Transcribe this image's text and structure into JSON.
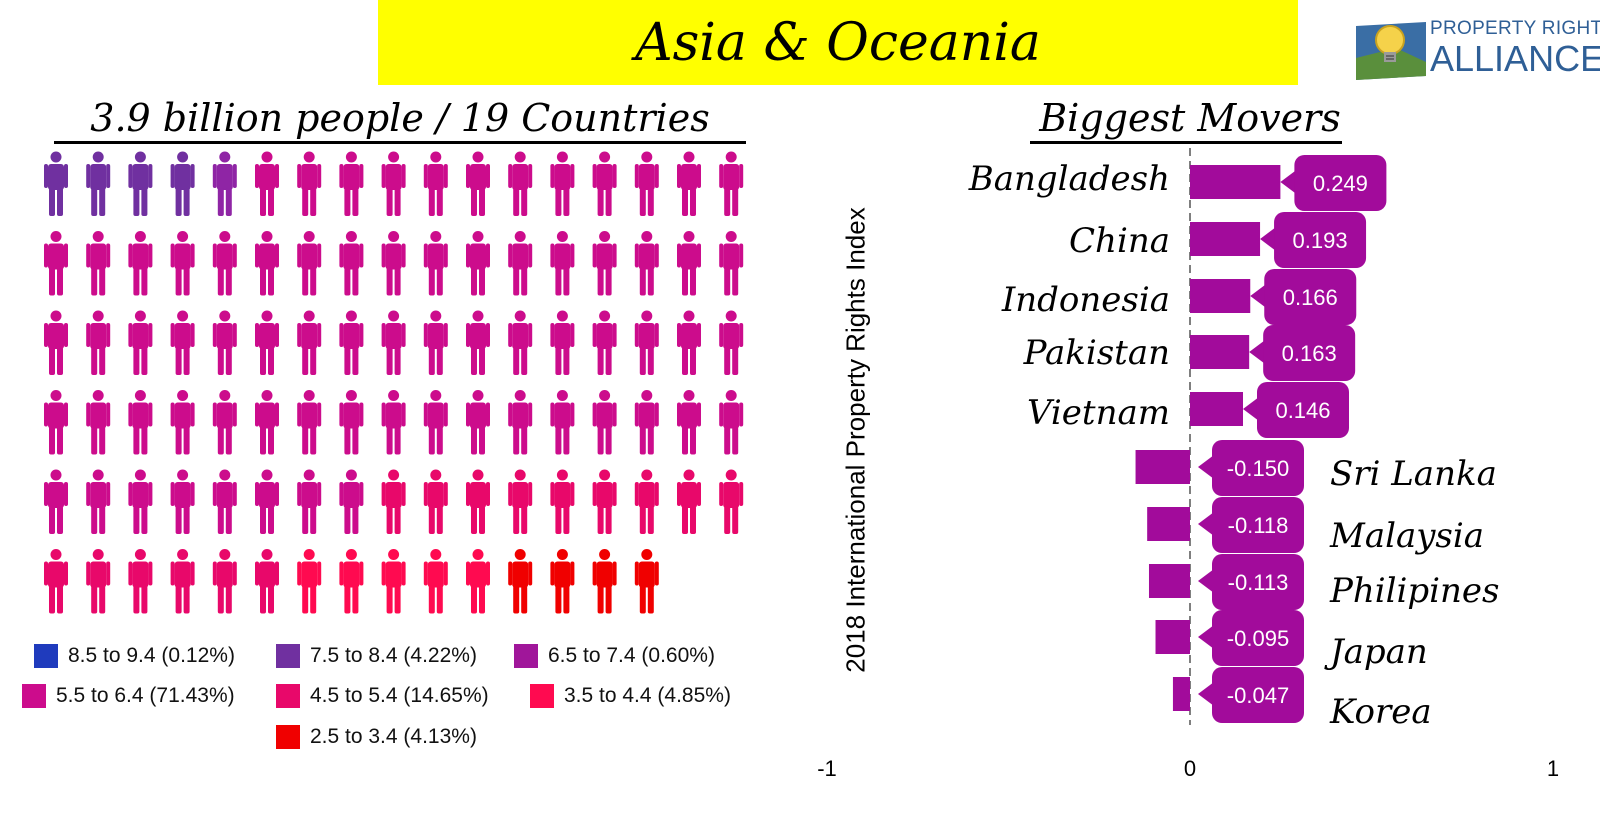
{
  "title": "Asia & Oceania",
  "logo": {
    "line1": "PROPERTY RIGHTS",
    "line2": "ALLIANCE",
    "color": "#2f5f96"
  },
  "left_heading": "3.9 billion people / 19 Countries",
  "right_heading": "Biggest Movers",
  "chart_data": [
    {
      "type": "pictogram",
      "title": "3.9 billion people / 19 Countries",
      "icon": "person-icon",
      "rows": [
        [
          "#7030a0",
          "#7030a0",
          "#7030a0",
          "#7030a0",
          "#8f25a5",
          "#cc0c8c",
          "#cc0c8c",
          "#cc0c8c",
          "#cc0c8c",
          "#cc0c8c",
          "#cc0c8c",
          "#cc0c8c",
          "#cc0c8c",
          "#cc0c8c",
          "#cc0c8c",
          "#cc0c8c",
          "#cc0c8c"
        ],
        [
          "#cc0c8c",
          "#cc0c8c",
          "#cc0c8c",
          "#cc0c8c",
          "#cc0c8c",
          "#cc0c8c",
          "#cc0c8c",
          "#cc0c8c",
          "#cc0c8c",
          "#cc0c8c",
          "#cc0c8c",
          "#cc0c8c",
          "#cc0c8c",
          "#cc0c8c",
          "#cc0c8c",
          "#cc0c8c",
          "#cc0c8c"
        ],
        [
          "#cc0c8c",
          "#cc0c8c",
          "#cc0c8c",
          "#cc0c8c",
          "#cc0c8c",
          "#cc0c8c",
          "#cc0c8c",
          "#cc0c8c",
          "#cc0c8c",
          "#cc0c8c",
          "#cc0c8c",
          "#cc0c8c",
          "#cc0c8c",
          "#cc0c8c",
          "#cc0c8c",
          "#cc0c8c",
          "#cc0c8c"
        ],
        [
          "#cc0c8c",
          "#cc0c8c",
          "#cc0c8c",
          "#cc0c8c",
          "#cc0c8c",
          "#cc0c8c",
          "#cc0c8c",
          "#cc0c8c",
          "#cc0c8c",
          "#cc0c8c",
          "#cc0c8c",
          "#cc0c8c",
          "#cc0c8c",
          "#cc0c8c",
          "#cc0c8c",
          "#cc0c8c",
          "#cc0c8c"
        ],
        [
          "#cc0c8c",
          "#cc0c8c",
          "#cc0c8c",
          "#cc0c8c",
          "#cc0c8c",
          "#cc0c8c",
          "#cc0c8c",
          "#cc0c8c",
          "#e8086a",
          "#e8086a",
          "#e8086a",
          "#e8086a",
          "#e8086a",
          "#e8086a",
          "#e8086a",
          "#e8086a",
          "#e8086a"
        ],
        [
          "#e8086a",
          "#e8086a",
          "#e8086a",
          "#e8086a",
          "#e8086a",
          "#e8086a",
          "#ff0a50",
          "#ff0a50",
          "#ff0a50",
          "#ff0a50",
          "#ff0a50",
          "#f00000",
          "#f00000",
          "#f00000",
          "#f00000"
        ]
      ],
      "legend": [
        {
          "label": "8.5 to 9.4 (0.12%)",
          "color": "#1f3bbd"
        },
        {
          "label": "7.5 to 8.4 (4.22%)",
          "color": "#7030a0"
        },
        {
          "label": "6.5 to 7.4 (0.60%)",
          "color": "#a0169a"
        },
        {
          "label": "5.5 to 6.4 (71.43%)",
          "color": "#cc0c8c"
        },
        {
          "label": "4.5 to 5.4 (14.65%)",
          "color": "#e8086a"
        },
        {
          "label": "3.5 to 4.4 (4.85%)",
          "color": "#ff0a50"
        },
        {
          "label": "2.5 to 3.4 (4.13%)",
          "color": "#f00000"
        }
      ]
    },
    {
      "type": "bar",
      "orientation": "horizontal",
      "title": "Biggest Movers",
      "ylabel": "2018 International Property Rights Index",
      "xlim": [
        -1,
        1
      ],
      "xticks": [
        "-1",
        "0",
        "1"
      ],
      "bar_color": "#a20b9b",
      "categories": [
        "Bangladesh",
        "China",
        "Indonesia",
        "Pakistan",
        "Vietnam",
        "Sri Lanka",
        "Malaysia",
        "Philipines",
        "Japan",
        "Korea"
      ],
      "values": [
        0.249,
        0.193,
        0.166,
        0.163,
        0.146,
        -0.15,
        -0.118,
        -0.113,
        -0.095,
        -0.047
      ],
      "value_labels": [
        "0.249",
        "0.193",
        "0.166",
        "0.163",
        "0.146",
        "-0.150",
        "-0.118",
        "-0.113",
        "-0.095",
        "-0.047"
      ]
    }
  ]
}
